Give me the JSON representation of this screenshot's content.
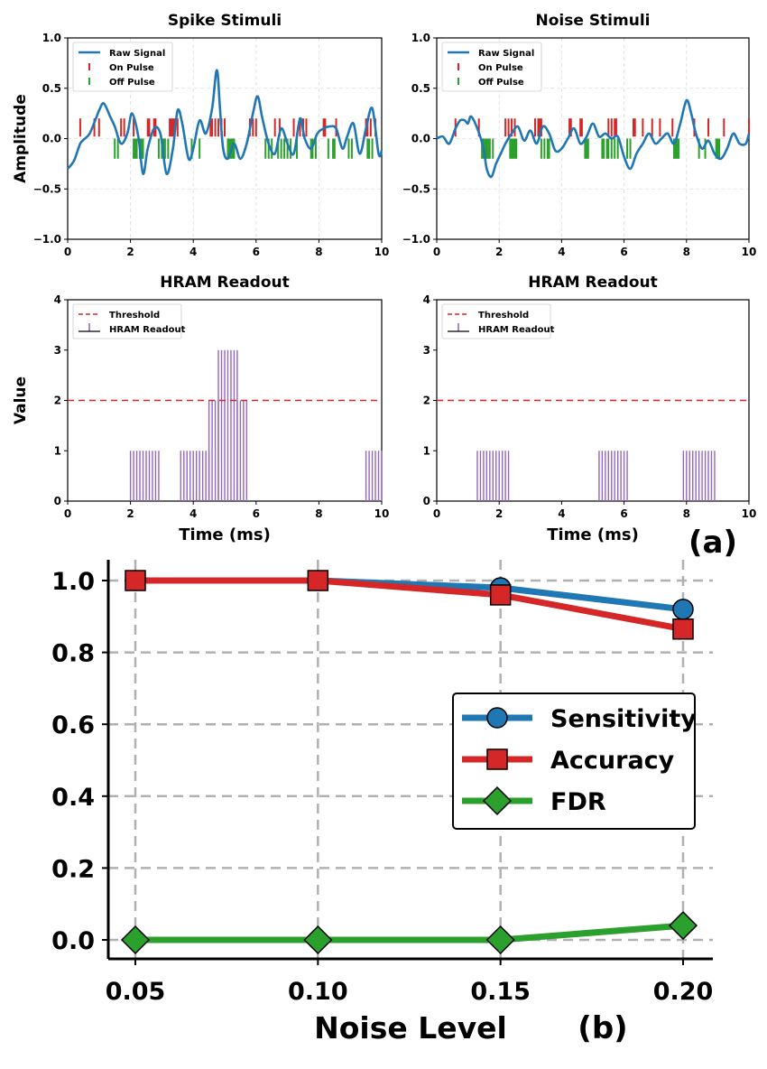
{
  "figure": {
    "panel_a_label": "(a)",
    "panel_b_label": "(b)"
  },
  "chart_data": [
    {
      "type": "line",
      "title": "Spike Stimuli",
      "xlabel": "",
      "ylabel": "Amplitude",
      "xlim": [
        0,
        10
      ],
      "ylim": [
        -1.0,
        1.0
      ],
      "xticks": [
        "0",
        "2",
        "4",
        "6",
        "8",
        "10"
      ],
      "yticks": [
        "−1.0",
        "−0.5",
        "0.0",
        "0.5",
        "1.0"
      ],
      "grid": true,
      "legend_position": "top-left",
      "series": [
        {
          "name": "Raw Signal",
          "color": "#1f77b4",
          "x": [
            0,
            0.2,
            0.4,
            0.55,
            0.7,
            0.9,
            1.0,
            1.15,
            1.35,
            1.5,
            1.7,
            1.9,
            2.05,
            2.25,
            2.4,
            2.55,
            2.75,
            2.95,
            3.15,
            3.35,
            3.5,
            3.65,
            3.85,
            4.0,
            4.2,
            4.4,
            4.6,
            4.75,
            4.85,
            4.95,
            5.1,
            5.3,
            5.5,
            5.7,
            5.9,
            6.05,
            6.2,
            6.4,
            6.6,
            6.8,
            7.0,
            7.2,
            7.4,
            7.55,
            7.75,
            7.95,
            8.15,
            8.35,
            8.55,
            8.75,
            8.9,
            9.1,
            9.3,
            9.5,
            9.7,
            9.9,
            10.0
          ],
          "y": [
            -0.3,
            -0.22,
            -0.05,
            0.0,
            0.05,
            0.2,
            0.28,
            0.35,
            0.22,
            0.12,
            -0.05,
            0.05,
            0.25,
            0.02,
            -0.35,
            -0.1,
            0.1,
            0.05,
            -0.35,
            -0.1,
            0.28,
            0.15,
            -0.2,
            -0.1,
            0.18,
            0.05,
            0.3,
            0.68,
            0.3,
            -0.1,
            -0.2,
            -0.05,
            -0.2,
            -0.05,
            0.25,
            0.42,
            0.2,
            -0.05,
            -0.15,
            0.1,
            -0.05,
            -0.15,
            0.2,
            0.0,
            -0.1,
            0.05,
            0.1,
            0.12,
            0.1,
            -0.1,
            0.02,
            0.15,
            -0.15,
            0.1,
            0.3,
            -0.15,
            -0.12
          ]
        },
        {
          "name": "On Pulse",
          "color": "#d62728",
          "x": [
            0.4,
            0.85,
            1.0,
            1.7,
            1.8,
            2.1,
            2.55,
            2.6,
            2.75,
            2.8,
            3.25,
            3.3,
            3.35,
            3.4,
            3.5,
            4.55,
            4.6,
            4.7,
            4.8,
            4.9,
            5.0,
            5.8,
            5.9,
            6.0,
            6.6,
            6.75,
            7.2,
            7.4,
            7.5,
            7.6,
            8.15,
            8.2,
            8.55,
            9.5,
            9.55,
            9.65,
            9.8
          ]
        },
        {
          "name": "Off Pulse",
          "color": "#2ca02c",
          "x": [
            1.5,
            1.6,
            2.1,
            2.15,
            2.2,
            2.3,
            2.35,
            2.4,
            2.9,
            3.0,
            3.05,
            3.1,
            3.2,
            3.95,
            4.2,
            5.1,
            5.15,
            5.2,
            5.25,
            5.3,
            6.3,
            6.4,
            6.5,
            6.7,
            6.8,
            6.9,
            7.0,
            7.1,
            7.3,
            7.75,
            7.8,
            7.9,
            8.3,
            8.45,
            8.5,
            8.95,
            9.05,
            9.55,
            9.6,
            9.7
          ]
        }
      ]
    },
    {
      "type": "line",
      "title": "Noise Stimuli",
      "xlabel": "",
      "ylabel": "",
      "xlim": [
        0,
        10
      ],
      "ylim": [
        -1.0,
        1.0
      ],
      "xticks": [
        "0",
        "2",
        "4",
        "6",
        "8",
        "10"
      ],
      "yticks": [
        "−1.0",
        "−0.5",
        "0.0",
        "0.5",
        "1.0"
      ],
      "grid": true,
      "legend_position": "top-left",
      "series": [
        {
          "name": "Raw Signal",
          "color": "#1f77b4",
          "x": [
            0,
            0.2,
            0.4,
            0.6,
            0.75,
            0.9,
            1.0,
            1.1,
            1.3,
            1.5,
            1.6,
            1.75,
            1.9,
            2.05,
            2.2,
            2.4,
            2.6,
            2.8,
            3.0,
            3.2,
            3.4,
            3.6,
            3.8,
            4.0,
            4.2,
            4.4,
            4.6,
            4.8,
            5.0,
            5.2,
            5.4,
            5.6,
            5.8,
            6.0,
            6.2,
            6.4,
            6.6,
            6.8,
            7.0,
            7.2,
            7.4,
            7.6,
            7.8,
            8.0,
            8.15,
            8.3,
            8.5,
            8.7,
            8.9,
            9.1,
            9.3,
            9.5,
            9.7,
            9.9,
            10.0
          ],
          "y": [
            0.0,
            0.02,
            -0.05,
            0.1,
            0.18,
            0.18,
            0.15,
            0.22,
            0.1,
            -0.1,
            -0.3,
            -0.38,
            -0.25,
            -0.15,
            -0.05,
            0.05,
            0.12,
            -0.02,
            0.08,
            -0.05,
            0.12,
            0.05,
            -0.12,
            -0.1,
            0.0,
            0.1,
            -0.05,
            0.02,
            0.15,
            0.02,
            0.05,
            0.0,
            0.02,
            -0.18,
            -0.3,
            -0.15,
            -0.05,
            0.05,
            -0.05,
            0.0,
            0.05,
            -0.05,
            0.15,
            0.38,
            0.25,
            0.05,
            -0.1,
            -0.02,
            -0.15,
            -0.2,
            -0.1,
            0.05,
            -0.05,
            -0.05,
            0.05
          ]
        },
        {
          "name": "On Pulse",
          "color": "#d62728",
          "x": [
            0.6,
            1.35,
            2.2,
            2.3,
            2.4,
            2.5,
            3.15,
            3.25,
            3.3,
            3.35,
            4.25,
            4.3,
            4.6,
            4.65,
            5.5,
            5.6,
            5.7,
            5.75,
            6.3,
            6.35,
            6.6,
            6.9,
            7.15,
            7.55,
            8.25,
            8.7,
            9.2,
            10.0
          ]
        },
        {
          "name": "Off Pulse",
          "color": "#2ca02c",
          "x": [
            1.45,
            1.5,
            1.55,
            1.6,
            1.65,
            1.7,
            1.8,
            2.35,
            2.4,
            2.45,
            2.5,
            2.55,
            3.35,
            3.45,
            3.55,
            3.6,
            4.75,
            4.8,
            4.85,
            5.3,
            5.35,
            5.45,
            5.5,
            5.6,
            5.7,
            5.8,
            6.1,
            6.2,
            7.6,
            7.65,
            7.7,
            7.75,
            8.4,
            8.6,
            8.95,
            9.0,
            9.05
          ]
        }
      ]
    },
    {
      "type": "bar",
      "title": "HRAM Readout",
      "xlabel": "Time (ms)",
      "ylabel": "Value",
      "xlim": [
        0,
        10
      ],
      "ylim": [
        0,
        4
      ],
      "xticks": [
        "0",
        "2",
        "4",
        "6",
        "8",
        "10"
      ],
      "yticks": [
        "0",
        "1",
        "2",
        "3",
        "4"
      ],
      "grid": false,
      "legend_position": "top-left",
      "threshold": {
        "name": "Threshold",
        "value": 2,
        "color": "#d62728"
      },
      "series": [
        {
          "name": "HRAM Readout",
          "color": "#9467bd",
          "segments": [
            {
              "x_start": 2.0,
              "x_end": 2.9,
              "value": 1
            },
            {
              "x_start": 3.6,
              "x_end": 4.5,
              "value": 1
            },
            {
              "x_start": 4.5,
              "x_end": 4.8,
              "value": 2
            },
            {
              "x_start": 4.8,
              "x_end": 5.4,
              "value": 3
            },
            {
              "x_start": 5.4,
              "x_end": 5.7,
              "value": 2
            },
            {
              "x_start": 9.5,
              "x_end": 10.0,
              "value": 1
            }
          ]
        }
      ]
    },
    {
      "type": "bar",
      "title": "HRAM Readout",
      "xlabel": "Time (ms)",
      "ylabel": "",
      "xlim": [
        0,
        10
      ],
      "ylim": [
        0,
        4
      ],
      "xticks": [
        "0",
        "2",
        "4",
        "6",
        "8",
        "10"
      ],
      "yticks": [
        "0",
        "1",
        "2",
        "3",
        "4"
      ],
      "grid": false,
      "legend_position": "top-left",
      "threshold": {
        "name": "Threshold",
        "value": 2,
        "color": "#d62728"
      },
      "series": [
        {
          "name": "HRAM Readout",
          "color": "#9467bd",
          "segments": [
            {
              "x_start": 1.3,
              "x_end": 2.3,
              "value": 1
            },
            {
              "x_start": 5.2,
              "x_end": 6.1,
              "value": 1
            },
            {
              "x_start": 7.9,
              "x_end": 8.9,
              "value": 1
            }
          ]
        }
      ]
    },
    {
      "type": "line",
      "title": "",
      "xlabel": "Noise Level",
      "ylabel": "",
      "xlim": [
        0.05,
        0.2
      ],
      "ylim": [
        0.0,
        1.0
      ],
      "xticks": [
        "0.05",
        "0.10",
        "0.15",
        "0.20"
      ],
      "yticks": [
        "0.0",
        "0.2",
        "0.4",
        "0.6",
        "0.8",
        "1.0"
      ],
      "grid": true,
      "legend_position": "center-right",
      "x": [
        0.05,
        0.1,
        0.15,
        0.2
      ],
      "series": [
        {
          "name": "Sensitivity",
          "color": "#1f77b4",
          "marker": "circle",
          "values": [
            1.0,
            1.0,
            0.98,
            0.92
          ]
        },
        {
          "name": "Accuracy",
          "color": "#d62728",
          "marker": "square",
          "values": [
            1.0,
            1.0,
            0.96,
            0.865
          ]
        },
        {
          "name": "FDR",
          "color": "#2ca02c",
          "marker": "diamond",
          "values": [
            0.0,
            0.0,
            0.0,
            0.04
          ]
        }
      ]
    }
  ]
}
